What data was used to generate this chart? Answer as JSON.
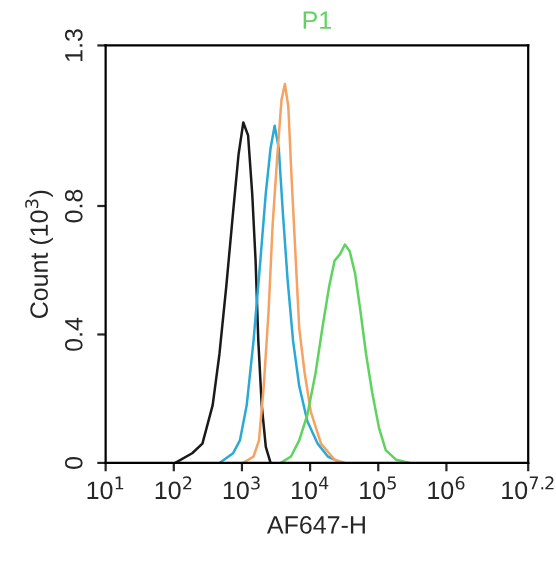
{
  "chart_data": {
    "type": "line",
    "title": "P1",
    "xlabel": "AF647-H",
    "ylabel": "Count (10$^{3}$)",
    "log": "x",
    "grid": false,
    "legend": false,
    "marker": "none",
    "line_style": "solid",
    "xlim": [
      10,
      15848932
    ],
    "ylim": [
      0,
      1.3
    ],
    "xticks": [
      {
        "value": 10,
        "label": "10$^{1}$"
      },
      {
        "value": 100,
        "label": "10$^{2}$"
      },
      {
        "value": 1000,
        "label": "10$^{3}$"
      },
      {
        "value": 10000,
        "label": "10$^{4}$"
      },
      {
        "value": 100000,
        "label": "10$^{5}$"
      },
      {
        "value": 1000000,
        "label": "10$^{6}$"
      },
      {
        "value": 15848932,
        "label": "10$^{7.2}$"
      }
    ],
    "yticks": [
      0,
      0.4,
      0.8,
      1.3
    ],
    "series": [
      {
        "color": "#1a1a1a",
        "x": [
          105,
          186,
          263,
          372,
          468,
          589,
          741,
          891,
          1047,
          1230,
          1413,
          1585,
          1738,
          1950,
          2239,
          2630
        ],
        "values": [
          0,
          0.03,
          0.06,
          0.18,
          0.34,
          0.55,
          0.78,
          0.96,
          1.06,
          1.02,
          0.84,
          0.63,
          0.38,
          0.18,
          0.05,
          0
        ]
      },
      {
        "color": "#2aa9d6",
        "x": [
          468,
          741,
          933,
          1175,
          1479,
          1862,
          2239,
          2630,
          3020,
          3467,
          3981,
          4677,
          5623,
          6918,
          9120,
          12900,
          18200,
          28800
        ],
        "values": [
          0,
          0.03,
          0.07,
          0.18,
          0.38,
          0.63,
          0.84,
          0.98,
          1.05,
          0.98,
          0.78,
          0.57,
          0.38,
          0.24,
          0.13,
          0.06,
          0.02,
          0
        ]
      },
      {
        "color": "#f5a263",
        "x": [
          1047,
          1479,
          1778,
          2089,
          2455,
          2818,
          3311,
          3802,
          4266,
          4786,
          5370,
          6166,
          6918,
          8318,
          10230,
          14450,
          22900,
          32400
        ],
        "values": [
          0,
          0.02,
          0.07,
          0.24,
          0.47,
          0.74,
          0.96,
          1.13,
          1.18,
          1.11,
          0.88,
          0.63,
          0.42,
          0.28,
          0.16,
          0.06,
          0.01,
          0
        ]
      },
      {
        "color": "#5fd35f",
        "x": [
          3715,
          5248,
          6918,
          9120,
          12020,
          15140,
          19050,
          22900,
          27540,
          32400,
          38000,
          45700,
          55000,
          66100,
          81300,
          102300,
          128800,
          182000,
          288400
        ],
        "values": [
          0,
          0.02,
          0.07,
          0.15,
          0.28,
          0.42,
          0.55,
          0.63,
          0.65,
          0.68,
          0.66,
          0.59,
          0.47,
          0.34,
          0.22,
          0.11,
          0.04,
          0.01,
          0
        ]
      }
    ]
  }
}
